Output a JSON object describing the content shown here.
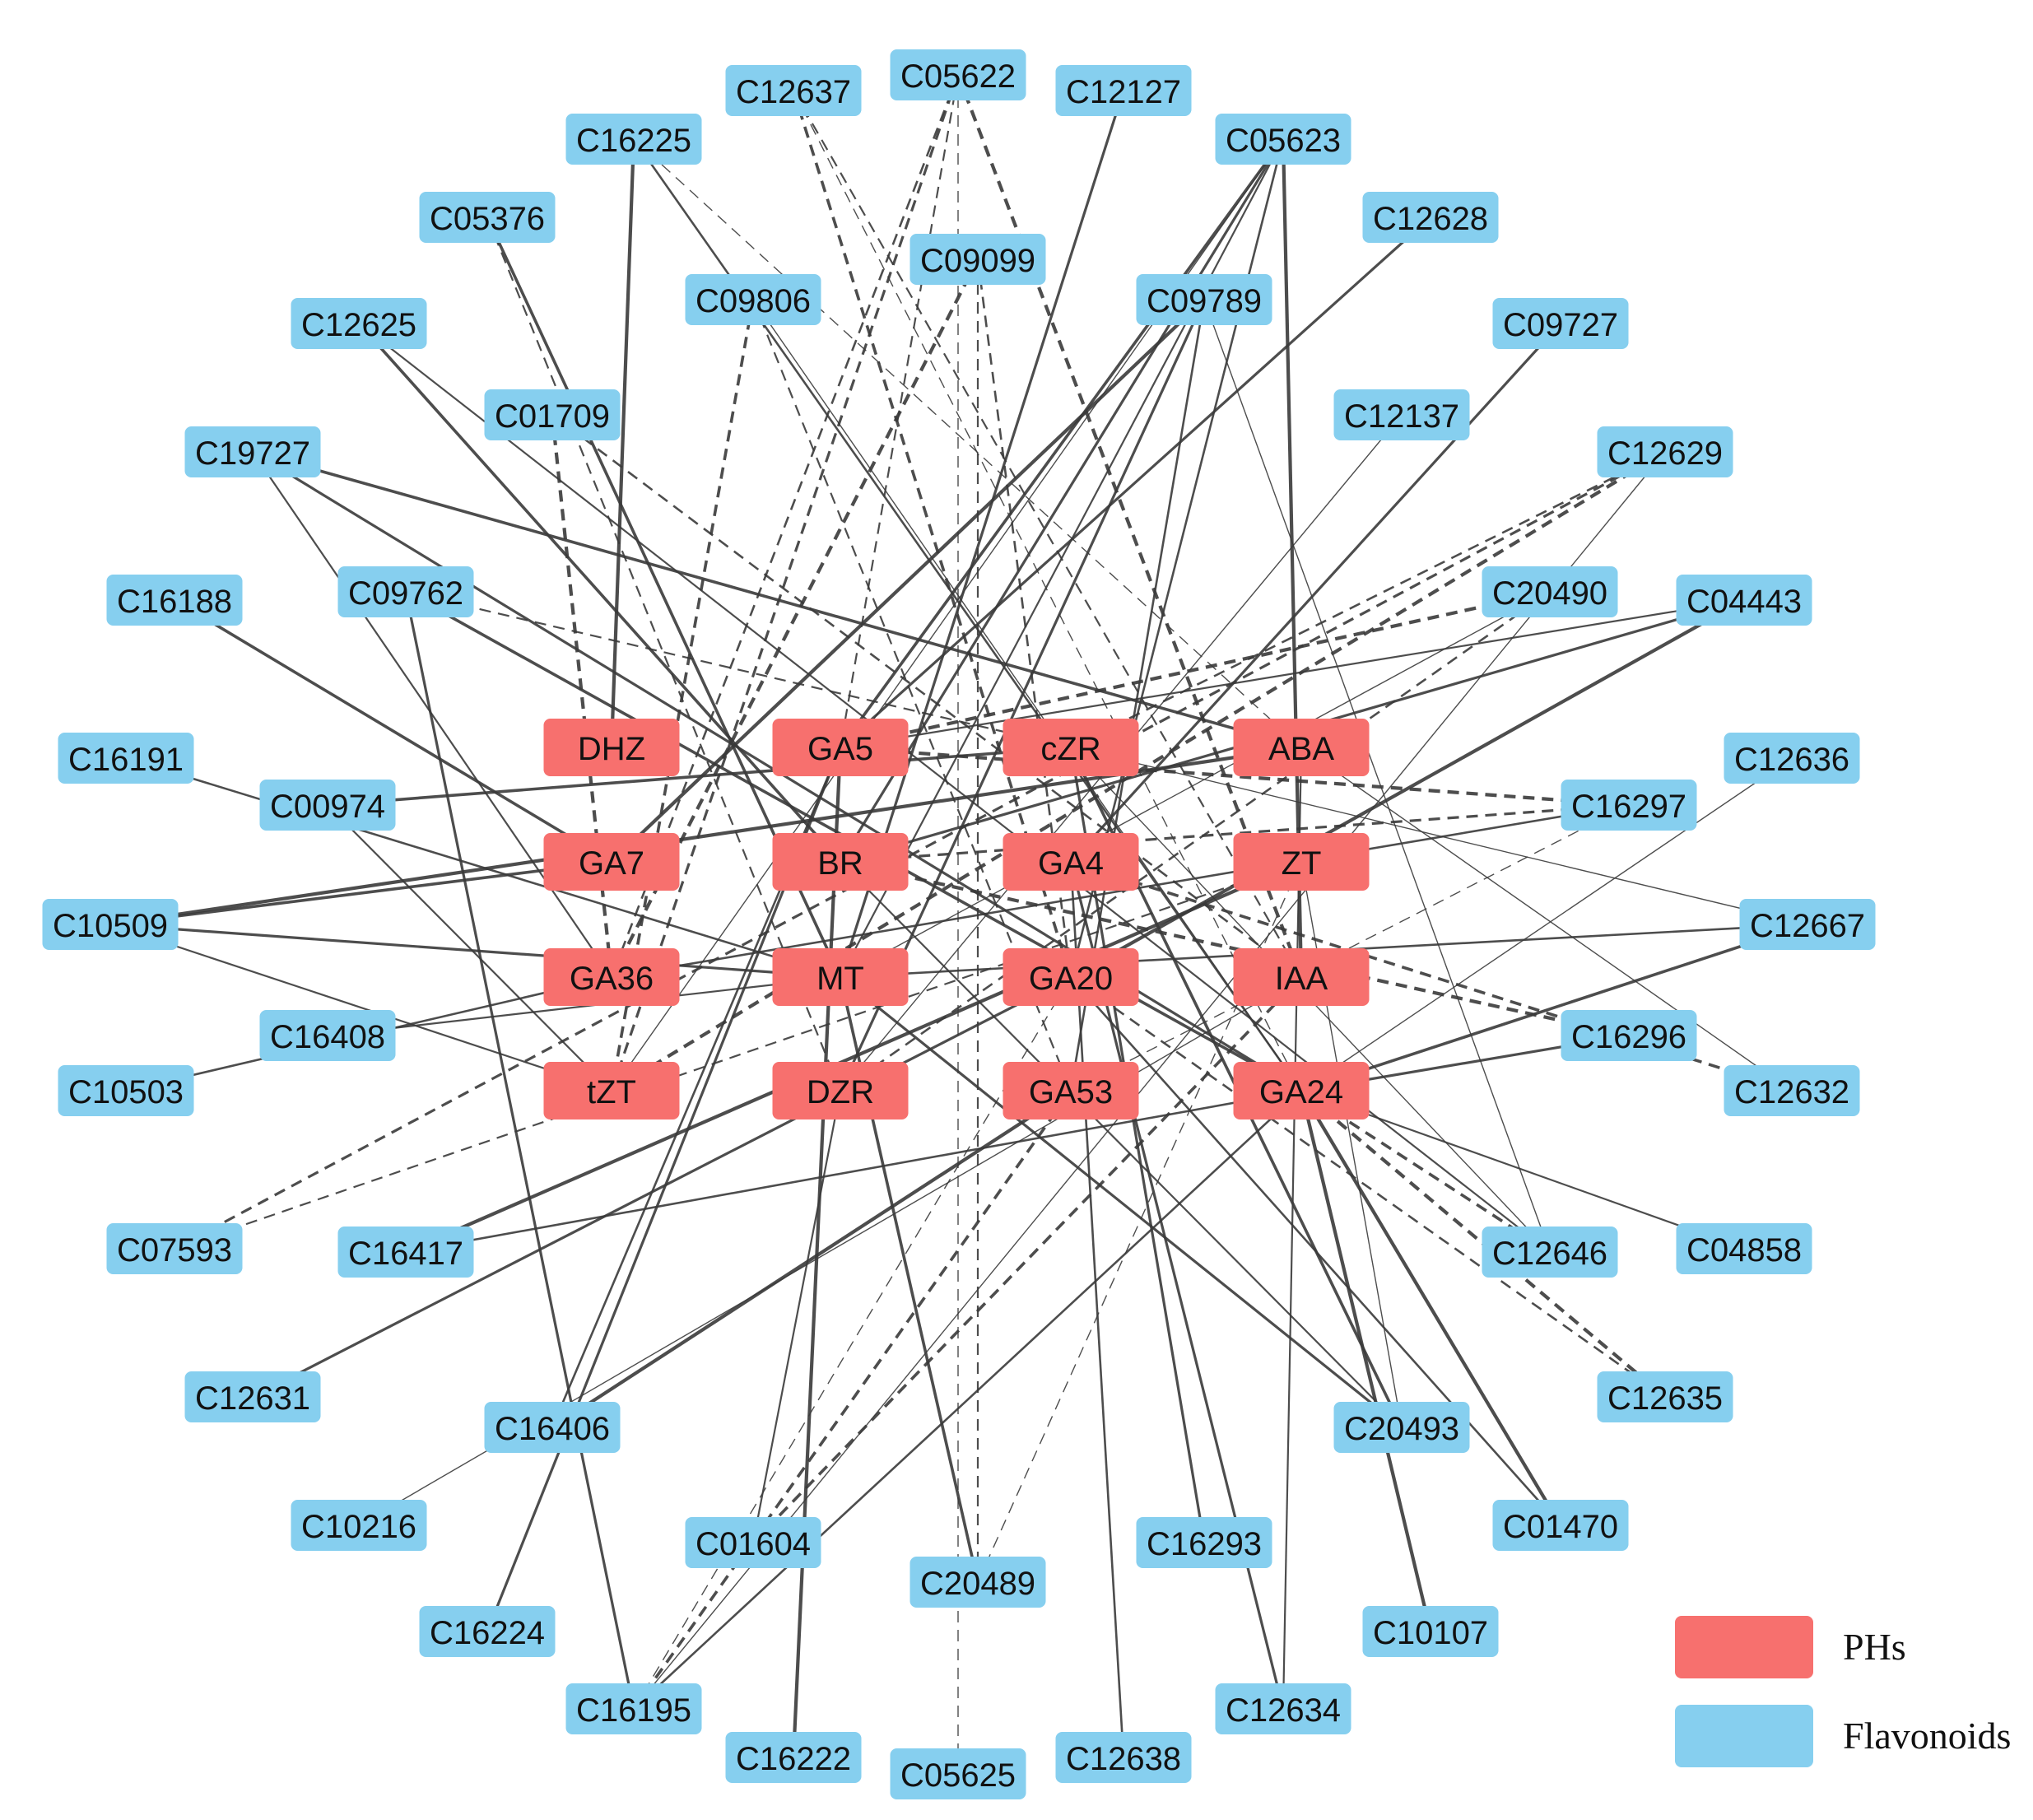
{
  "colors": {
    "phs": "#F7706E",
    "flavonoids": "#86CFEF",
    "edge": "#3a3a3a"
  },
  "legend": [
    {
      "label": "PHs",
      "group": "phs"
    },
    {
      "label": "Flavonoids",
      "group": "flavonoids"
    }
  ],
  "nodes": [
    {
      "id": "DHZ",
      "group": "phs"
    },
    {
      "id": "GA5",
      "group": "phs"
    },
    {
      "id": "cZR",
      "group": "phs"
    },
    {
      "id": "ABA",
      "group": "phs"
    },
    {
      "id": "GA7",
      "group": "phs"
    },
    {
      "id": "BR",
      "group": "phs"
    },
    {
      "id": "GA4",
      "group": "phs"
    },
    {
      "id": "ZT",
      "group": "phs"
    },
    {
      "id": "GA36",
      "group": "phs"
    },
    {
      "id": "MT",
      "group": "phs"
    },
    {
      "id": "GA20",
      "group": "phs"
    },
    {
      "id": "IAA",
      "group": "phs"
    },
    {
      "id": "tZT",
      "group": "phs"
    },
    {
      "id": "DZR",
      "group": "phs"
    },
    {
      "id": "GA53",
      "group": "phs"
    },
    {
      "id": "GA24",
      "group": "phs"
    },
    {
      "id": "C05622",
      "group": "flavonoids"
    },
    {
      "id": "C12637",
      "group": "flavonoids"
    },
    {
      "id": "C12127",
      "group": "flavonoids"
    },
    {
      "id": "C16225",
      "group": "flavonoids"
    },
    {
      "id": "C05623",
      "group": "flavonoids"
    },
    {
      "id": "C05376",
      "group": "flavonoids"
    },
    {
      "id": "C12628",
      "group": "flavonoids"
    },
    {
      "id": "C09099",
      "group": "flavonoids"
    },
    {
      "id": "C09806",
      "group": "flavonoids"
    },
    {
      "id": "C09789",
      "group": "flavonoids"
    },
    {
      "id": "C12625",
      "group": "flavonoids"
    },
    {
      "id": "C09727",
      "group": "flavonoids"
    },
    {
      "id": "C01709",
      "group": "flavonoids"
    },
    {
      "id": "C12137",
      "group": "flavonoids"
    },
    {
      "id": "C19727",
      "group": "flavonoids"
    },
    {
      "id": "C12629",
      "group": "flavonoids"
    },
    {
      "id": "C09762",
      "group": "flavonoids"
    },
    {
      "id": "C20490",
      "group": "flavonoids"
    },
    {
      "id": "C16188",
      "group": "flavonoids"
    },
    {
      "id": "C04443",
      "group": "flavonoids"
    },
    {
      "id": "C16191",
      "group": "flavonoids"
    },
    {
      "id": "C12636",
      "group": "flavonoids"
    },
    {
      "id": "C00974",
      "group": "flavonoids"
    },
    {
      "id": "C16297",
      "group": "flavonoids"
    },
    {
      "id": "C10509",
      "group": "flavonoids"
    },
    {
      "id": "C12667",
      "group": "flavonoids"
    },
    {
      "id": "C16408",
      "group": "flavonoids"
    },
    {
      "id": "C16296",
      "group": "flavonoids"
    },
    {
      "id": "C10503",
      "group": "flavonoids"
    },
    {
      "id": "C12632",
      "group": "flavonoids"
    },
    {
      "id": "C07593",
      "group": "flavonoids"
    },
    {
      "id": "C16417",
      "group": "flavonoids"
    },
    {
      "id": "C12646",
      "group": "flavonoids"
    },
    {
      "id": "C04858",
      "group": "flavonoids"
    },
    {
      "id": "C12631",
      "group": "flavonoids"
    },
    {
      "id": "C16406",
      "group": "flavonoids"
    },
    {
      "id": "C20493",
      "group": "flavonoids"
    },
    {
      "id": "C12635",
      "group": "flavonoids"
    },
    {
      "id": "C10216",
      "group": "flavonoids"
    },
    {
      "id": "C01604",
      "group": "flavonoids"
    },
    {
      "id": "C16293",
      "group": "flavonoids"
    },
    {
      "id": "C01470",
      "group": "flavonoids"
    },
    {
      "id": "C20489",
      "group": "flavonoids"
    },
    {
      "id": "C16224",
      "group": "flavonoids"
    },
    {
      "id": "C10107",
      "group": "flavonoids"
    },
    {
      "id": "C16195",
      "group": "flavonoids"
    },
    {
      "id": "C12634",
      "group": "flavonoids"
    },
    {
      "id": "C16222",
      "group": "flavonoids"
    },
    {
      "id": "C12638",
      "group": "flavonoids"
    },
    {
      "id": "C05625",
      "group": "flavonoids"
    }
  ],
  "edges": [
    {
      "source": "C05622",
      "target": "GA5",
      "style": "dashed"
    },
    {
      "source": "C05622",
      "target": "tZT",
      "style": "dashed"
    },
    {
      "source": "C05622",
      "target": "IAA",
      "style": "dashed"
    },
    {
      "source": "C05622",
      "target": "GA36",
      "style": "dashed"
    },
    {
      "source": "C12637",
      "target": "GA24",
      "style": "dashed"
    },
    {
      "source": "C12637",
      "target": "GA20",
      "style": "dashed"
    },
    {
      "source": "C12637",
      "target": "IAA",
      "style": "dashed"
    },
    {
      "source": "C12127",
      "target": "MT",
      "style": "solid"
    },
    {
      "source": "C16225",
      "target": "DHZ",
      "style": "solid"
    },
    {
      "source": "C16225",
      "target": "GA24",
      "style": "solid"
    },
    {
      "source": "C16225",
      "target": "ABA",
      "style": "dashed"
    },
    {
      "source": "C05623",
      "target": "GA5",
      "style": "solid"
    },
    {
      "source": "C05623",
      "target": "MT",
      "style": "solid"
    },
    {
      "source": "C05623",
      "target": "BR",
      "style": "solid"
    },
    {
      "source": "C05623",
      "target": "IAA",
      "style": "solid"
    },
    {
      "source": "C05623",
      "target": "GA20",
      "style": "solid"
    },
    {
      "source": "C05623",
      "target": "tZT",
      "style": "solid"
    },
    {
      "source": "C05376",
      "target": "MT",
      "style": "solid"
    },
    {
      "source": "C05376",
      "target": "DZR",
      "style": "dashed"
    },
    {
      "source": "C12628",
      "target": "GA5",
      "style": "solid"
    },
    {
      "source": "C09099",
      "target": "GA36",
      "style": "dashed"
    },
    {
      "source": "C09099",
      "target": "GA20",
      "style": "dashed"
    },
    {
      "source": "C09806",
      "target": "GA24",
      "style": "solid"
    },
    {
      "source": "C09806",
      "target": "tZT",
      "style": "dashed"
    },
    {
      "source": "C09806",
      "target": "GA53",
      "style": "dashed"
    },
    {
      "source": "C09789",
      "target": "DZR",
      "style": "solid"
    },
    {
      "source": "C09789",
      "target": "GA7",
      "style": "solid"
    },
    {
      "source": "C09789",
      "target": "GA53",
      "style": "solid"
    },
    {
      "source": "C09789",
      "target": "C12646",
      "style": "solid"
    },
    {
      "source": "C12625",
      "target": "BR",
      "style": "solid"
    },
    {
      "source": "C12625",
      "target": "C12646",
      "style": "solid"
    },
    {
      "source": "C09727",
      "target": "GA4",
      "style": "solid"
    },
    {
      "source": "C01709",
      "target": "GA36",
      "style": "dashed"
    },
    {
      "source": "C01709",
      "target": "IAA",
      "style": "dashed"
    },
    {
      "source": "C12137",
      "target": "DZR",
      "style": "solid"
    },
    {
      "source": "C19727",
      "target": "ABA",
      "style": "solid"
    },
    {
      "source": "C19727",
      "target": "GA36",
      "style": "solid"
    },
    {
      "source": "C19727",
      "target": "GA24",
      "style": "solid"
    },
    {
      "source": "C12629",
      "target": "tZT",
      "style": "dashed"
    },
    {
      "source": "C12629",
      "target": "cZR",
      "style": "dashed"
    },
    {
      "source": "C12629",
      "target": "C16195",
      "style": "solid"
    },
    {
      "source": "C09762",
      "target": "GA24",
      "style": "solid"
    },
    {
      "source": "C09762",
      "target": "cZR",
      "style": "dashed"
    },
    {
      "source": "C09762",
      "target": "C16195",
      "style": "solid"
    },
    {
      "source": "C20490",
      "target": "GA5",
      "style": "dashed"
    },
    {
      "source": "C20490",
      "target": "DZR",
      "style": "dashed"
    },
    {
      "source": "C20490",
      "target": "MT",
      "style": "solid"
    },
    {
      "source": "C16188",
      "target": "GA7",
      "style": "solid"
    },
    {
      "source": "C04443",
      "target": "GA5",
      "style": "solid"
    },
    {
      "source": "C04443",
      "target": "BR",
      "style": "solid"
    },
    {
      "source": "C04443",
      "target": "GA20",
      "style": "solid"
    },
    {
      "source": "C16191",
      "target": "MT",
      "style": "solid"
    },
    {
      "source": "C12636",
      "target": "GA24",
      "style": "solid"
    },
    {
      "source": "C00974",
      "target": "cZR",
      "style": "solid"
    },
    {
      "source": "C00974",
      "target": "tZT",
      "style": "solid"
    },
    {
      "source": "C16297",
      "target": "BR",
      "style": "dashed"
    },
    {
      "source": "C16297",
      "target": "GA5",
      "style": "dashed"
    },
    {
      "source": "C16297",
      "target": "GA36",
      "style": "solid"
    },
    {
      "source": "C16297",
      "target": "GA53",
      "style": "dashed"
    },
    {
      "source": "C10509",
      "target": "GA7",
      "style": "solid"
    },
    {
      "source": "C10509",
      "target": "tZT",
      "style": "solid"
    },
    {
      "source": "C10509",
      "target": "MT",
      "style": "solid"
    },
    {
      "source": "C10509",
      "target": "ABA",
      "style": "solid"
    },
    {
      "source": "C12667",
      "target": "MT",
      "style": "solid"
    },
    {
      "source": "C12667",
      "target": "cZR",
      "style": "solid"
    },
    {
      "source": "C12667",
      "target": "GA24",
      "style": "solid"
    },
    {
      "source": "C16408",
      "target": "MT",
      "style": "solid"
    },
    {
      "source": "C16296",
      "target": "GA24",
      "style": "solid"
    },
    {
      "source": "C16296",
      "target": "BR",
      "style": "dashed"
    },
    {
      "source": "C10503",
      "target": "GA36",
      "style": "solid"
    },
    {
      "source": "C12632",
      "target": "ABA",
      "style": "solid"
    },
    {
      "source": "C12632",
      "target": "GA4",
      "style": "dashed"
    },
    {
      "source": "C07593",
      "target": "ZT",
      "style": "dashed"
    },
    {
      "source": "C07593",
      "target": "C12629",
      "style": "dashed"
    },
    {
      "source": "C16417",
      "target": "ZT",
      "style": "solid"
    },
    {
      "source": "C16417",
      "target": "GA24",
      "style": "solid"
    },
    {
      "source": "C12646",
      "target": "cZR",
      "style": "solid"
    },
    {
      "source": "C12646",
      "target": "GA24",
      "style": "dashed"
    },
    {
      "source": "C04858",
      "target": "GA24",
      "style": "solid"
    },
    {
      "source": "C12631",
      "target": "GA20",
      "style": "solid"
    },
    {
      "source": "C16406",
      "target": "GA53",
      "style": "solid"
    },
    {
      "source": "C16406",
      "target": "GA5",
      "style": "solid"
    },
    {
      "source": "C20493",
      "target": "ZT",
      "style": "solid"
    },
    {
      "source": "C20493",
      "target": "cZR",
      "style": "solid"
    },
    {
      "source": "C20493",
      "target": "BR",
      "style": "solid"
    },
    {
      "source": "C20493",
      "target": "MT",
      "style": "solid"
    },
    {
      "source": "C12635",
      "target": "GA24",
      "style": "dashed"
    },
    {
      "source": "C12635",
      "target": "GA20",
      "style": "dashed"
    },
    {
      "source": "C10216",
      "target": "IAA",
      "style": "solid"
    },
    {
      "source": "C01604",
      "target": "IAA",
      "style": "dashed"
    },
    {
      "source": "C01604",
      "target": "DZR",
      "style": "solid"
    },
    {
      "source": "C16293",
      "target": "cZR",
      "style": "solid"
    },
    {
      "source": "C01470",
      "target": "GA24",
      "style": "solid"
    },
    {
      "source": "C01470",
      "target": "GA20",
      "style": "solid"
    },
    {
      "source": "C20489",
      "target": "ZT",
      "style": "dashed"
    },
    {
      "source": "C20489",
      "target": "MT",
      "style": "solid"
    },
    {
      "source": "C20489",
      "target": "C09099",
      "style": "dashed"
    },
    {
      "source": "C16224",
      "target": "GA5",
      "style": "solid"
    },
    {
      "source": "C10107",
      "target": "GA24",
      "style": "solid"
    },
    {
      "source": "C16195",
      "target": "GA24",
      "style": "solid"
    },
    {
      "source": "C16195",
      "target": "GA20",
      "style": "dashed"
    },
    {
      "source": "C16195",
      "target": "GA53",
      "style": "dashed"
    },
    {
      "source": "C12634",
      "target": "ABA",
      "style": "solid"
    },
    {
      "source": "C12634",
      "target": "GA4",
      "style": "solid"
    },
    {
      "source": "C16222",
      "target": "GA5",
      "style": "solid"
    },
    {
      "source": "C12638",
      "target": "GA4",
      "style": "solid"
    },
    {
      "source": "C05625",
      "target": "C05622",
      "style": "dashed"
    }
  ]
}
